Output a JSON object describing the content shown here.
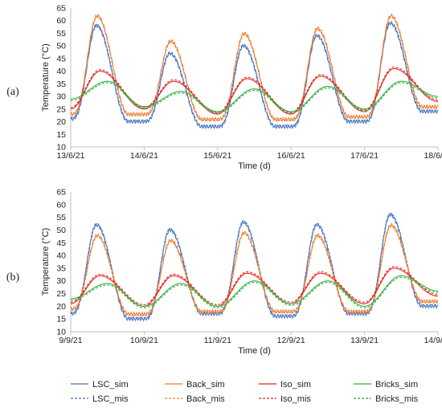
{
  "chart_data": [
    {
      "type": "line",
      "panel_label": "(a)",
      "xlabel": "Time (d)",
      "ylabel": "Temperature (°C)",
      "ylim": [
        10,
        65
      ],
      "yticks": [
        10,
        15,
        20,
        25,
        30,
        35,
        40,
        45,
        50,
        55,
        60,
        65
      ],
      "xlim": [
        0,
        5
      ],
      "xtick_labels": [
        "13/6/21",
        "14/6/21",
        "15/6/21",
        "16/6/21",
        "17/6/21",
        "18/6/21"
      ],
      "grid": false,
      "peaks": {
        "LSC": [
          58,
          47,
          50,
          54,
          59
        ],
        "Back": [
          62,
          52,
          55,
          57,
          62
        ],
        "Iso": [
          40,
          36,
          37,
          38,
          41
        ],
        "Bricks": [
          36,
          32,
          33,
          34,
          36
        ]
      },
      "troughs": {
        "LSC": [
          21,
          20,
          18,
          18,
          20,
          24
        ],
        "Back": [
          23,
          23,
          21,
          21,
          22,
          26
        ],
        "Iso": [
          25,
          25,
          23,
          23,
          24,
          28
        ],
        "Bricks": [
          29,
          26,
          24,
          24,
          25,
          30
        ]
      }
    },
    {
      "type": "line",
      "panel_label": "(b)",
      "xlabel": "Time (d)",
      "ylabel": "Temperature (°C)",
      "ylim": [
        10,
        65
      ],
      "yticks": [
        10,
        15,
        20,
        25,
        30,
        35,
        40,
        45,
        50,
        55,
        60,
        65
      ],
      "xlim": [
        0,
        5
      ],
      "xtick_labels": [
        "9/9/21",
        "10/9/21",
        "11/9/21",
        "12/9/21",
        "13/9/21",
        "14/9/21"
      ],
      "grid": false,
      "peaks": {
        "LSC": [
          52,
          50,
          53,
          52,
          56
        ],
        "Back": [
          48,
          46,
          49,
          48,
          52
        ],
        "Iso": [
          32,
          32,
          33,
          33,
          35
        ],
        "Bricks": [
          29,
          29,
          30,
          30,
          32
        ]
      },
      "troughs": {
        "LSC": [
          17,
          15,
          17,
          16,
          17,
          20
        ],
        "Back": [
          19,
          17,
          18,
          18,
          18,
          22
        ],
        "Iso": [
          21,
          20,
          20,
          21,
          21,
          24
        ],
        "Bricks": [
          23,
          20,
          20,
          21,
          20,
          26
        ]
      }
    }
  ],
  "series_styles": [
    {
      "key": "LSC",
      "color": "#4472C4"
    },
    {
      "key": "Back",
      "color": "#ED7D31"
    },
    {
      "key": "Iso",
      "color": "#E8231A"
    },
    {
      "key": "Bricks",
      "color": "#2EAE3C"
    }
  ],
  "legend": [
    {
      "label": "LSC_sim",
      "series": "LSC",
      "dash": false
    },
    {
      "label": "Back_sim",
      "series": "Back",
      "dash": false
    },
    {
      "label": "Iso_sim",
      "series": "Iso",
      "dash": false
    },
    {
      "label": "Bricks_sim",
      "series": "Bricks",
      "dash": false
    },
    {
      "label": "LSC_mis",
      "series": "LSC",
      "dash": true
    },
    {
      "label": "Back_mis",
      "series": "Back",
      "dash": true
    },
    {
      "label": "Iso_mis",
      "series": "Iso",
      "dash": true
    },
    {
      "label": "Bricks_mis",
      "series": "Bricks",
      "dash": true
    }
  ]
}
